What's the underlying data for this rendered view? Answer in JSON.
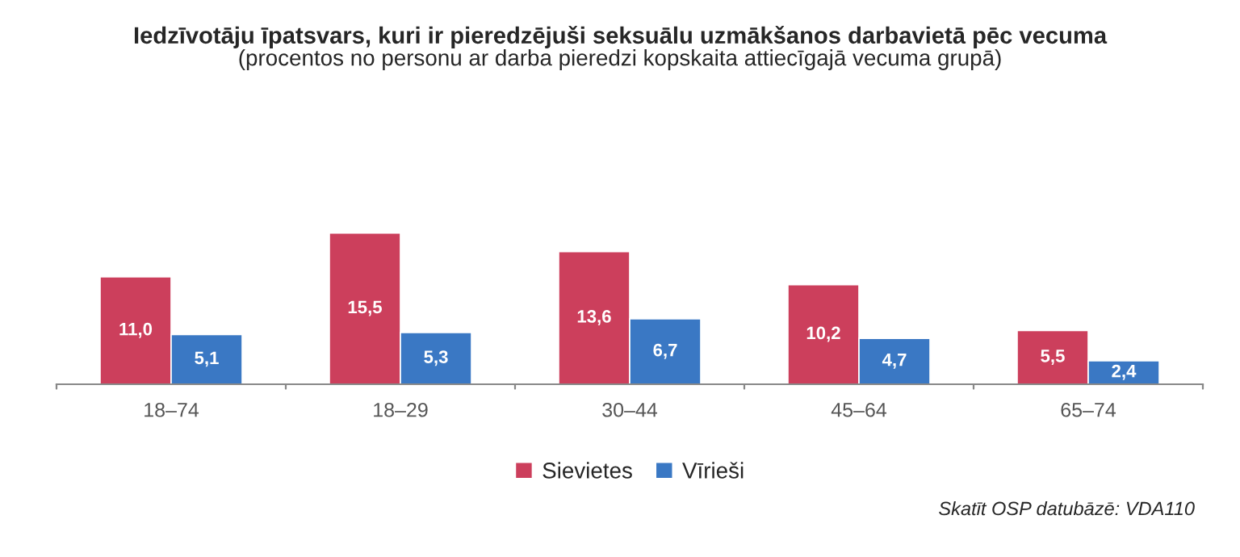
{
  "chart_data": {
    "type": "bar",
    "title": "Iedzīvotāju īpatsvars, kuri ir pieredzējuši seksuālu uzmākšanos darbavietā pēc vecuma",
    "subtitle": "(procentos no personu ar darba pieredzi kopskaita attiecīgajā vecuma grupā)",
    "categories": [
      "18–74",
      "18–29",
      "30–44",
      "45–64",
      "65–74"
    ],
    "series": [
      {
        "name": "Sievietes",
        "color": "#cc3f5c",
        "values": [
          11.0,
          15.5,
          13.6,
          10.2,
          5.5
        ],
        "value_labels": [
          "11,0",
          "15,5",
          "13,6",
          "10,2",
          "5,5"
        ]
      },
      {
        "name": "Vīrieši",
        "color": "#3a78c4",
        "values": [
          5.1,
          5.3,
          6.7,
          4.7,
          2.4
        ],
        "value_labels": [
          "5,1",
          "5,3",
          "6,7",
          "4,7",
          "2,4"
        ]
      }
    ],
    "legend": "bottom",
    "grid": false,
    "annotations": [
      "Skatīt OSP datubāzē: VDA110"
    ]
  }
}
